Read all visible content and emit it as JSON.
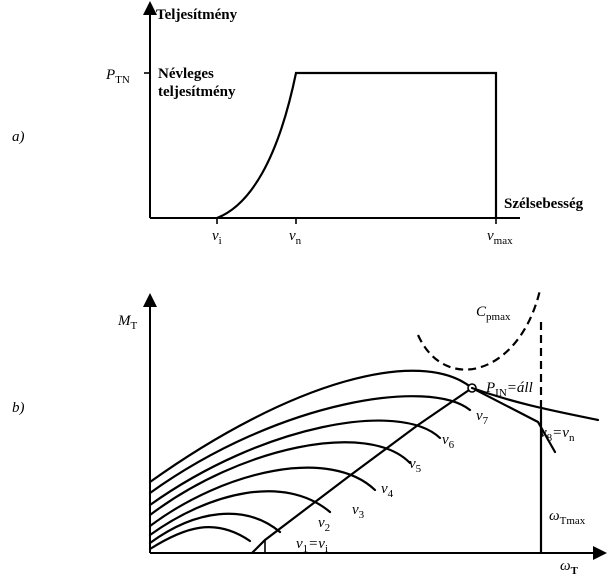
{
  "panel_a": {
    "tag": "a)",
    "y_axis_label": "Teljesítmény",
    "x_axis_label": "Szélsebesség",
    "p_symbol": "P",
    "p_sub": "TN",
    "rated_line1": "Névleges",
    "rated_line2": "teljesítmény",
    "x_ticks": [
      {
        "base": "v",
        "sub": "i"
      },
      {
        "base": "v",
        "sub": "n"
      },
      {
        "base": "v",
        "sub": "max"
      }
    ]
  },
  "panel_b": {
    "tag": "b)",
    "y_symbol": "M",
    "y_sub": "T",
    "x_symbol": "ω",
    "x_sub": "T",
    "cpmax_symbol": "C",
    "cpmax_sub": "pmax",
    "pin_symbol": "P",
    "pin_sub": "IN",
    "pin_rest": "=áll",
    "omega_max_symbol": "ω",
    "omega_max_sub": "Tmax",
    "curve_labels": [
      {
        "base": "v",
        "sub": "1",
        "rest": "=v",
        "rest_sub": "i"
      },
      {
        "base": "v",
        "sub": "2"
      },
      {
        "base": "v",
        "sub": "3"
      },
      {
        "base": "v",
        "sub": "4"
      },
      {
        "base": "v",
        "sub": "5"
      },
      {
        "base": "v",
        "sub": "6"
      },
      {
        "base": "v",
        "sub": "7"
      },
      {
        "base": "v",
        "sub": "8",
        "rest": "=v",
        "rest_sub": "n"
      }
    ]
  }
}
